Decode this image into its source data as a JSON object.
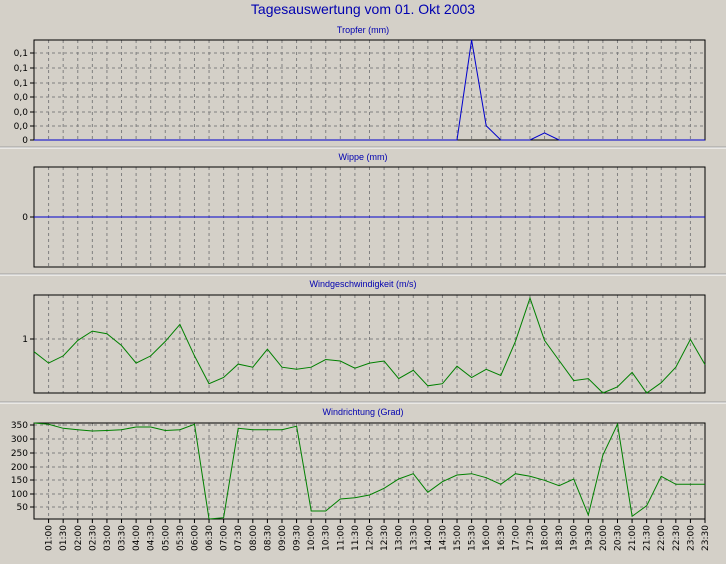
{
  "title": "Tagesauswertung vom 01. Okt 2003",
  "x_ticks": [
    "01:00",
    "01:30",
    "02:00",
    "02:30",
    "03:00",
    "03:30",
    "04:00",
    "04:30",
    "05:00",
    "05:30",
    "06:00",
    "06:30",
    "07:00",
    "07:30",
    "08:00",
    "08:30",
    "09:00",
    "09:30",
    "10:00",
    "10:30",
    "11:00",
    "11:30",
    "12:00",
    "12:30",
    "13:00",
    "13:30",
    "14:00",
    "14:30",
    "15:00",
    "15:30",
    "16:00",
    "16:30",
    "17:00",
    "17:30",
    "18:00",
    "18:30",
    "19:00",
    "19:30",
    "20:00",
    "20:30",
    "21:00",
    "21:30",
    "22:00",
    "22:30",
    "23:00",
    "23:30"
  ],
  "colors": {
    "background": "#d4d0c8",
    "title": "#0000b0",
    "tropfer": "#0000cc",
    "wippe": "#0000cc",
    "wind": "#008000",
    "grid": "#808080"
  },
  "chart_data": [
    {
      "type": "line",
      "title": "Tropfer (mm)",
      "y_tick_labels": [
        "0,1",
        "0,1",
        "0,1",
        "0,0",
        "0,0",
        "0,0",
        "0"
      ],
      "ylim": [
        0,
        0.14
      ],
      "grid": true,
      "x": [
        "00:30",
        "01:00",
        "01:30",
        "02:00",
        "02:30",
        "03:00",
        "03:30",
        "04:00",
        "04:30",
        "05:00",
        "05:30",
        "06:00",
        "06:30",
        "07:00",
        "07:30",
        "08:00",
        "08:30",
        "09:00",
        "09:30",
        "10:00",
        "10:30",
        "11:00",
        "11:30",
        "12:00",
        "12:30",
        "13:00",
        "13:30",
        "14:00",
        "14:30",
        "15:00",
        "15:30",
        "16:00",
        "16:30",
        "17:00",
        "17:30",
        "18:00",
        "18:30",
        "19:00",
        "19:30",
        "20:00",
        "20:30",
        "21:00",
        "21:30",
        "22:00",
        "22:30",
        "23:00",
        "23:30"
      ],
      "values": [
        0,
        0,
        0,
        0,
        0,
        0,
        0,
        0,
        0,
        0,
        0,
        0,
        0,
        0,
        0,
        0,
        0,
        0,
        0,
        0,
        0,
        0,
        0,
        0,
        0,
        0,
        0,
        0,
        0,
        0,
        0.14,
        0.02,
        0,
        0,
        0,
        0.01,
        0,
        0,
        0,
        0,
        0,
        0,
        0,
        0,
        0,
        0,
        0
      ]
    },
    {
      "type": "line",
      "title": "Wippe (mm)",
      "y_tick_labels": [
        "0"
      ],
      "ylim": [
        -1,
        1
      ],
      "grid": true,
      "x": [
        "00:30",
        "23:30"
      ],
      "values": [
        0,
        0
      ]
    },
    {
      "type": "line",
      "title": "Windgeschwindigkeit (m/s)",
      "y_tick_labels": [
        "1"
      ],
      "ylim": [
        0,
        1.9
      ],
      "grid": true,
      "x": [
        "00:30",
        "01:00",
        "01:30",
        "02:00",
        "02:30",
        "03:00",
        "03:30",
        "04:00",
        "04:30",
        "05:00",
        "05:30",
        "06:00",
        "06:30",
        "07:00",
        "07:30",
        "08:00",
        "08:30",
        "09:00",
        "09:30",
        "10:00",
        "10:30",
        "11:00",
        "11:30",
        "12:00",
        "12:30",
        "13:00",
        "13:30",
        "14:00",
        "14:30",
        "15:00",
        "15:30",
        "16:00",
        "16:30",
        "17:00",
        "17:30",
        "18:00",
        "18:30",
        "19:00",
        "19:30",
        "20:00",
        "20:30",
        "21:00",
        "21:30",
        "22:00",
        "22:30",
        "23:00",
        "23:30"
      ],
      "values": [
        0.8,
        0.58,
        0.72,
        1.02,
        1.2,
        1.15,
        0.92,
        0.58,
        0.72,
        1.0,
        1.33,
        0.72,
        0.18,
        0.3,
        0.56,
        0.5,
        0.85,
        0.5,
        0.46,
        0.5,
        0.65,
        0.62,
        0.48,
        0.58,
        0.62,
        0.28,
        0.44,
        0.14,
        0.18,
        0.52,
        0.3,
        0.46,
        0.34,
        1.0,
        1.84,
        1.02,
        0.63,
        0.24,
        0.28,
        0.0,
        0.12,
        0.4,
        0.0,
        0.2,
        0.5,
        1.04,
        0.55
      ]
    },
    {
      "type": "line",
      "title": "Windrichtung (Grad)",
      "y_tick_labels": [
        "350",
        "300",
        "250",
        "200",
        "150",
        "100",
        "50"
      ],
      "ylim": [
        0,
        360
      ],
      "grid": true,
      "x": [
        "00:30",
        "01:00",
        "01:30",
        "02:00",
        "02:30",
        "03:00",
        "03:30",
        "04:00",
        "04:30",
        "05:00",
        "05:30",
        "06:00",
        "06:30",
        "07:00",
        "07:30",
        "08:00",
        "08:30",
        "09:00",
        "09:30",
        "10:00",
        "10:30",
        "11:00",
        "11:30",
        "12:00",
        "12:30",
        "13:00",
        "13:30",
        "14:00",
        "14:30",
        "15:00",
        "15:30",
        "16:00",
        "16:30",
        "17:00",
        "17:30",
        "18:00",
        "18:30",
        "19:00",
        "19:30",
        "20:00",
        "20:30",
        "21:00",
        "21:30",
        "22:00",
        "22:30",
        "23:00",
        "23:30"
      ],
      "values": [
        360,
        355,
        340,
        335,
        330,
        332,
        335,
        345,
        345,
        332,
        335,
        355,
        0,
        5,
        340,
        335,
        335,
        335,
        348,
        30,
        30,
        75,
        80,
        90,
        115,
        150,
        170,
        100,
        140,
        165,
        170,
        155,
        130,
        170,
        160,
        145,
        125,
        150,
        15,
        240,
        355,
        10,
        50,
        160,
        130,
        130,
        130
      ]
    }
  ]
}
